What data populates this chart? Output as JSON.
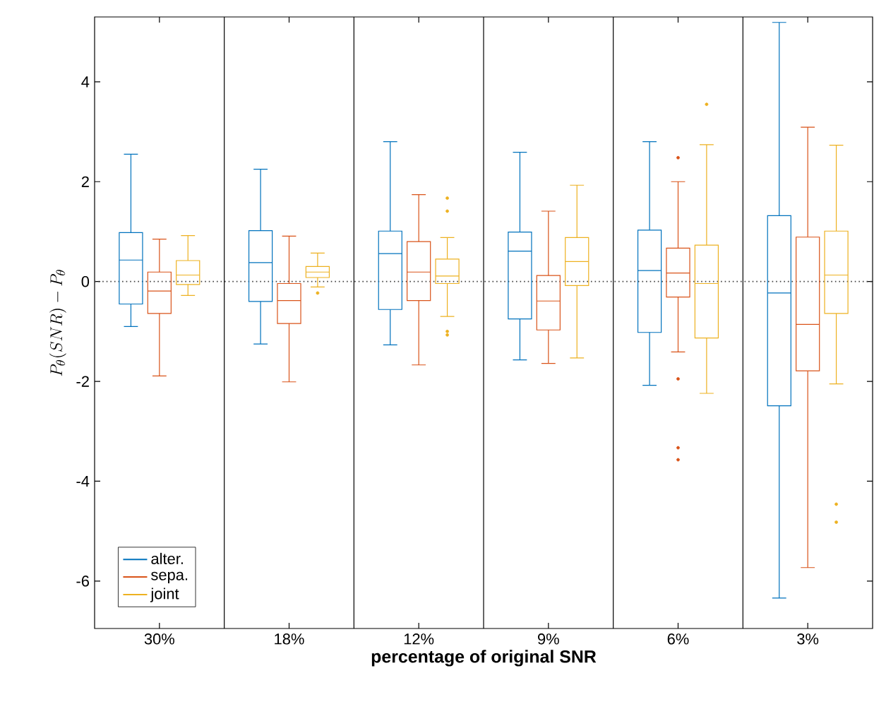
{
  "chart_data": {
    "type": "box",
    "xlabel": "percentage of original SNR",
    "ylabel": "P_\\theta(SNR) - P_\\theta",
    "categories": [
      "30%",
      "18%",
      "12%",
      "9%",
      "6%",
      "3%"
    ],
    "ylim": [
      -6.95,
      5.3
    ],
    "yticks": [
      -6,
      -4,
      -2,
      0,
      2,
      4
    ],
    "legend": "bottom left",
    "ref_lines": [
      {
        "axis": "y",
        "value": 0,
        "color": "#404040",
        "line_style": "dotted"
      }
    ],
    "series": [
      {
        "name": "alter.",
        "color": "#0072bd",
        "boxes": [
          {
            "low": -0.9,
            "q1": -0.45,
            "median": 0.43,
            "q3": 0.98,
            "high": 2.55
          },
          {
            "low": -1.25,
            "q1": -0.4,
            "median": 0.38,
            "q3": 1.02,
            "high": 2.25
          },
          {
            "low": -1.27,
            "q1": -0.56,
            "median": 0.56,
            "q3": 1.01,
            "high": 2.8
          },
          {
            "low": -1.57,
            "q1": -0.75,
            "median": 0.61,
            "q3": 0.99,
            "high": 2.59
          },
          {
            "low": -2.08,
            "q1": -1.02,
            "median": 0.22,
            "q3": 1.03,
            "high": 2.8
          },
          {
            "low": -6.34,
            "q1": -2.49,
            "median": -0.23,
            "q3": 1.32,
            "high": 5.19
          }
        ]
      },
      {
        "name": "sepa.",
        "color": "#d95319",
        "boxes": [
          {
            "low": -1.89,
            "q1": -0.64,
            "median": -0.19,
            "q3": 0.19,
            "high": 0.85
          },
          {
            "low": -2.01,
            "q1": -0.84,
            "median": -0.38,
            "q3": -0.04,
            "high": 0.91
          },
          {
            "low": -1.67,
            "q1": -0.38,
            "median": 0.19,
            "q3": 0.8,
            "high": 1.74
          },
          {
            "low": -1.64,
            "q1": -0.97,
            "median": -0.39,
            "q3": 0.12,
            "high": 1.41
          },
          {
            "low": -1.41,
            "q1": -0.31,
            "median": 0.17,
            "q3": 0.67,
            "high": 2.0,
            "outliers": [
              2.48,
              -1.95,
              -3.33,
              -3.57
            ]
          },
          {
            "low": -5.73,
            "q1": -1.79,
            "median": -0.86,
            "q3": 0.89,
            "high": 3.09
          }
        ]
      },
      {
        "name": "joint",
        "color": "#edb120",
        "boxes": [
          {
            "low": -0.28,
            "q1": -0.06,
            "median": 0.13,
            "q3": 0.42,
            "high": 0.92
          },
          {
            "low": -0.11,
            "q1": 0.08,
            "median": 0.19,
            "q3": 0.3,
            "high": 0.57,
            "outliers": [
              -0.23
            ]
          },
          {
            "low": -0.7,
            "q1": -0.04,
            "median": 0.11,
            "q3": 0.45,
            "high": 0.88,
            "outliers": [
              1.67,
              1.41,
              -1.0,
              -1.07
            ]
          },
          {
            "low": -1.53,
            "q1": -0.08,
            "median": 0.4,
            "q3": 0.88,
            "high": 1.93
          },
          {
            "low": -2.24,
            "q1": -1.13,
            "median": -0.04,
            "q3": 0.73,
            "high": 2.74,
            "outliers": [
              3.55
            ]
          },
          {
            "low": -2.05,
            "q1": -0.64,
            "median": 0.13,
            "q3": 1.01,
            "high": 2.73,
            "outliers": [
              -4.46,
              -4.82
            ]
          }
        ]
      }
    ]
  }
}
